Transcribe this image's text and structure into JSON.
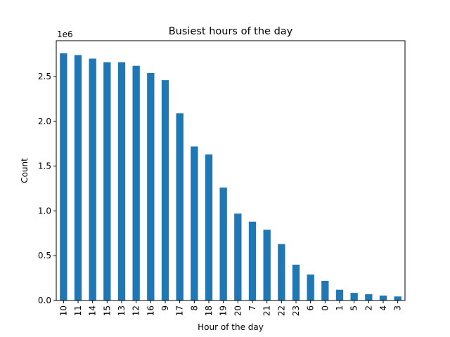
{
  "chart_data": {
    "type": "bar",
    "title": "Busiest hours of the day",
    "xlabel": "Hour of the day",
    "ylabel": "Count",
    "offset_label": "1e6",
    "scale": 1000000,
    "categories": [
      "10",
      "11",
      "14",
      "15",
      "13",
      "12",
      "16",
      "9",
      "17",
      "8",
      "18",
      "19",
      "20",
      "7",
      "21",
      "22",
      "23",
      "6",
      "0",
      "1",
      "5",
      "2",
      "4",
      "3"
    ],
    "values": [
      2760000,
      2740000,
      2700000,
      2660000,
      2660000,
      2620000,
      2540000,
      2460000,
      2090000,
      1720000,
      1630000,
      1260000,
      970000,
      880000,
      790000,
      630000,
      400000,
      290000,
      220000,
      120000,
      85000,
      70000,
      55000,
      45000
    ],
    "yticks": [
      0,
      0.5,
      1.0,
      1.5,
      2.0,
      2.5
    ],
    "ytick_labels": [
      "0.0",
      "0.5",
      "1.0",
      "1.5",
      "2.0",
      "2.5"
    ],
    "ylim": [
      0,
      2900000
    ],
    "bar_color": "#1f77b4",
    "grid": false
  }
}
